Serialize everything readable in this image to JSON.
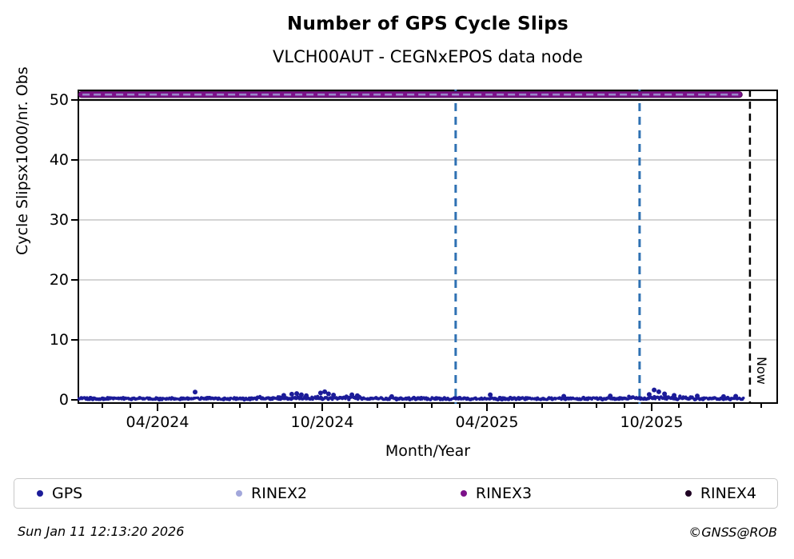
{
  "title": "Number of GPS Cycle Slips",
  "subtitle": "VLCH00AUT - CEGNxEPOS data node",
  "now_label": "Now",
  "footer": {
    "timestamp": "Sun Jan 11 12:13:20 2026",
    "credit": "©GNSS@ROB"
  },
  "legend": {
    "items": [
      {
        "label": "GPS",
        "color": "#1c1c99"
      },
      {
        "label": "RINEX2",
        "color": "#a2a7db"
      },
      {
        "label": "RINEX3",
        "color": "#7c1189"
      },
      {
        "label": "RINEX4",
        "color": "#1f0223"
      }
    ]
  },
  "chart_data": {
    "type": "scatter",
    "title": "Number of GPS Cycle Slips",
    "subtitle": "VLCH00AUT - CEGNxEPOS data node",
    "xlabel": "Month/Year",
    "ylabel": "Cycle Slipsx1000/nr. Obs",
    "x_axis": {
      "unit": "months_since_2024_01",
      "range": [
        0.09,
        25.6
      ],
      "major_tick_months": [
        3,
        9,
        15,
        21
      ],
      "major_tick_labels": [
        "04/2024",
        "10/2024",
        "04/2025",
        "10/2025"
      ],
      "minor_tick_every_month": true
    },
    "y_axis": {
      "ticks": [
        0,
        10,
        20,
        30,
        40,
        50
      ],
      "ylim": [
        -0.7,
        51.7
      ],
      "grid_color": "#bbbbbb",
      "grid_ticks": [
        10,
        20,
        30,
        40
      ]
    },
    "hline": {
      "y": 50,
      "color": "#000000",
      "style": "solid"
    },
    "vlines": [
      {
        "t": 13.86,
        "approx_date": "2025-02-26",
        "color": "#2f71b3",
        "style": "dashed"
      },
      {
        "t": 20.56,
        "approx_date": "2025-09-17",
        "color": "#2f71b3",
        "style": "dashed"
      },
      {
        "t": 24.58,
        "approx_date": "2026-01-11",
        "color": "#000000",
        "style": "dashed",
        "label": "Now"
      }
    ],
    "series": [
      {
        "name": "GPS",
        "color": "#1c1c99",
        "style": "dense-noise-band",
        "band": {
          "t_start": 0.1,
          "t_end": 24.35,
          "y_min": 0.03,
          "y_max": 0.38
        },
        "boost_windows": [
          {
            "t_start": 6.6,
            "t_end": 10.4,
            "extra": 0.32
          },
          {
            "t_start": 19.5,
            "t_end": 22.5,
            "extra": 0.3
          }
        ],
        "outliers": [
          [
            4.37,
            1.3
          ],
          [
            7.6,
            0.75
          ],
          [
            7.89,
            0.95
          ],
          [
            8.07,
            1.05
          ],
          [
            8.24,
            0.85
          ],
          [
            8.42,
            0.7
          ],
          [
            8.94,
            1.15
          ],
          [
            9.09,
            1.35
          ],
          [
            9.23,
            1.0
          ],
          [
            9.41,
            0.8
          ],
          [
            10.08,
            0.85
          ],
          [
            10.28,
            0.7
          ],
          [
            11.53,
            0.55
          ],
          [
            15.12,
            0.85
          ],
          [
            17.8,
            0.6
          ],
          [
            19.49,
            0.65
          ],
          [
            20.91,
            0.9
          ],
          [
            21.09,
            1.65
          ],
          [
            21.26,
            1.35
          ],
          [
            21.47,
            1.0
          ],
          [
            21.82,
            0.75
          ],
          [
            22.66,
            0.65
          ],
          [
            23.62,
            0.55
          ],
          [
            24.06,
            0.6
          ]
        ]
      },
      {
        "name": "RINEX2",
        "color": "#a2a7db",
        "style": "marker-band-overlap-highlight",
        "note_visible_as": "light dashes inside RINEX3 band",
        "band": {
          "y": 50.9,
          "t_start": 0.12,
          "t_end": 24.3
        }
      },
      {
        "name": "RINEX3",
        "color": "#7c1189",
        "style": "dense-marker-band",
        "band": {
          "y": 50.9,
          "t_start": 0.12,
          "t_end": 24.3
        }
      },
      {
        "name": "RINEX4",
        "color": "#1f0223",
        "style": "none-visible",
        "points": []
      }
    ],
    "legend_position": "bottom",
    "grid": true
  }
}
